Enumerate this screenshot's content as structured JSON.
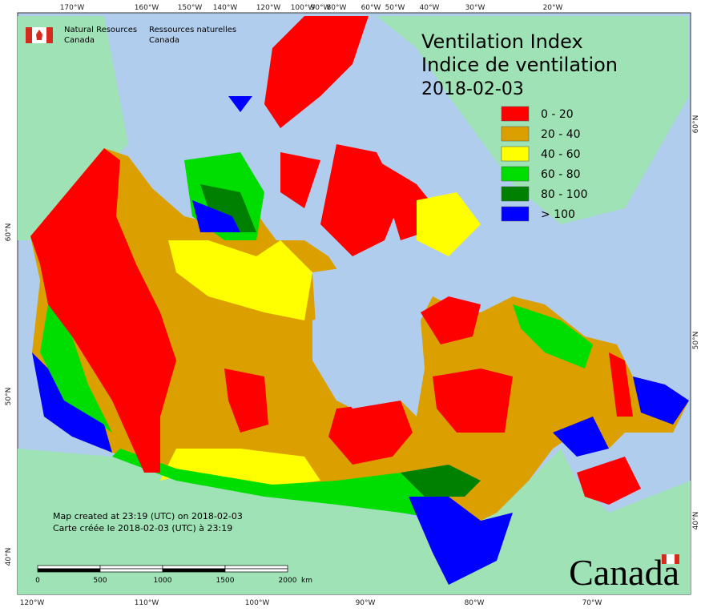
{
  "header": {
    "en": [
      "Natural Resources",
      "Canada"
    ],
    "fr": [
      "Ressources naturelles",
      "Canada"
    ]
  },
  "title": [
    "Ventilation Index",
    "Indice de ventilation",
    "2018-02-03"
  ],
  "legend": [
    {
      "label": "0 - 20",
      "color": "#ff0000"
    },
    {
      "label": "20 - 40",
      "color": "#dba000"
    },
    {
      "label": "40 - 60",
      "color": "#ffff00"
    },
    {
      "label": "60 - 80",
      "color": "#00dd00"
    },
    {
      "label": "80 - 100",
      "color": "#008000"
    },
    {
      "label": "> 100",
      "color": "#0000ff"
    }
  ],
  "graticule": {
    "top": [
      "170°W",
      "160°W",
      "150°W",
      "140°W",
      "120°W",
      "100°W",
      "90°W",
      "80°W",
      "60°W",
      "50°W",
      "40°W",
      "30°W",
      "20°W"
    ],
    "bottom": [
      "120°W",
      "110°W",
      "100°W",
      "90°W",
      "80°W",
      "70°W"
    ],
    "left": [
      "60°N",
      "50°N",
      "40°N"
    ],
    "right": [
      "60°N",
      "50°N",
      "40°N"
    ]
  },
  "footer": [
    "Map created at 23:19 (UTC) on 2018-02-03",
    "Carte créée le 2018-02-03 (UTC) à 23:19"
  ],
  "scale": {
    "labels": [
      "0",
      "500",
      "1000",
      "1500",
      "2000"
    ],
    "unit": "km"
  },
  "wordmark": "Canada"
}
